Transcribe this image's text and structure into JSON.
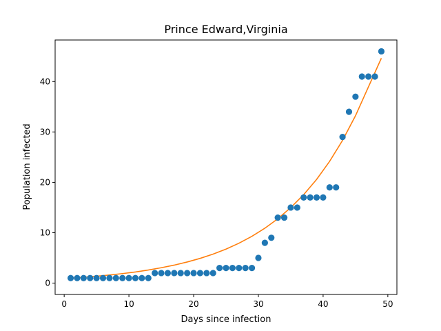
{
  "chart_data": {
    "type": "scatter",
    "title": "Prince Edward,Virginia",
    "xlabel": "Days since infection",
    "ylabel": "Population infected",
    "xlim": [
      -1.4,
      51.4
    ],
    "ylim": [
      -2.25,
      48.25
    ],
    "xticks": [
      0,
      10,
      20,
      30,
      40,
      50
    ],
    "yticks": [
      0,
      10,
      20,
      30,
      40
    ],
    "grid": false,
    "legend": "none",
    "series": [
      {
        "kind": "scatter",
        "color": "#1f77b4",
        "x": [
          1,
          2,
          3,
          4,
          5,
          6,
          7,
          8,
          9,
          10,
          11,
          12,
          13,
          14,
          15,
          16,
          17,
          18,
          19,
          20,
          21,
          22,
          23,
          24,
          25,
          26,
          27,
          28,
          29,
          30,
          31,
          32,
          33,
          34,
          35,
          36,
          37,
          38,
          39,
          40,
          41,
          42,
          43,
          44,
          45,
          46,
          47,
          48,
          49
        ],
        "y": [
          1,
          1,
          1,
          1,
          1,
          1,
          1,
          1,
          1,
          1,
          1,
          1,
          1,
          2,
          2,
          2,
          2,
          2,
          2,
          2,
          2,
          2,
          2,
          3,
          3,
          3,
          3,
          3,
          3,
          5,
          8,
          9,
          13,
          13,
          15,
          15,
          17,
          17,
          17,
          17,
          19,
          19,
          29,
          34,
          37,
          41,
          41,
          41,
          46
        ]
      },
      {
        "kind": "line",
        "color": "#ff7f0e",
        "x": [
          1,
          3,
          5,
          7,
          9,
          11,
          13,
          15,
          17,
          19,
          21,
          23,
          25,
          27,
          29,
          31,
          33,
          35,
          37,
          39,
          41,
          43,
          45,
          47,
          49
        ],
        "y": [
          1.0,
          1.17,
          1.37,
          1.61,
          1.89,
          2.21,
          2.6,
          3.05,
          3.57,
          4.19,
          4.91,
          5.76,
          6.75,
          7.92,
          9.29,
          10.89,
          12.77,
          14.98,
          17.56,
          20.59,
          24.15,
          28.32,
          33.21,
          38.94,
          44.64
        ]
      }
    ]
  }
}
